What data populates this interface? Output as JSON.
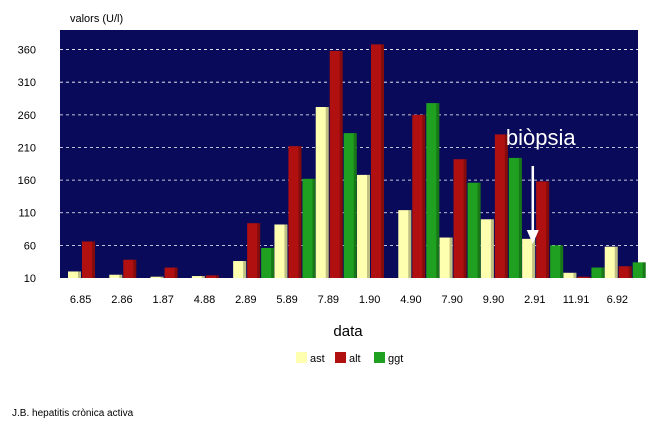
{
  "chart_data": {
    "type": "bar",
    "ylabel": "valors (U/l)",
    "xlabel": "data",
    "categories": [
      "6.85",
      "2.86",
      "1.87",
      "4.88",
      "2.89",
      "5.89",
      "7.89",
      "1.90",
      "4.90",
      "7.90",
      "9.90",
      "2.91",
      "11.91",
      "6.92"
    ],
    "series": [
      {
        "name": "ast",
        "color": "#ffffb0",
        "values": [
          20,
          15,
          12,
          13,
          36,
          92,
          272,
          168,
          114,
          72,
          100,
          70,
          18,
          58
        ]
      },
      {
        "name": "alt",
        "color": "#b01010",
        "values": [
          66,
          38,
          26,
          14,
          94,
          212,
          358,
          368,
          260,
          192,
          230,
          158,
          12,
          28
        ]
      },
      {
        "name": "ggt",
        "color": "#20a020",
        "values": [
          null,
          null,
          null,
          null,
          56,
          162,
          232,
          null,
          278,
          156,
          194,
          60,
          26,
          34
        ]
      }
    ],
    "yticks": [
      10,
      60,
      110,
      160,
      210,
      260,
      310,
      360
    ],
    "ylim": [
      10,
      390
    ],
    "grid": true,
    "legend_position": "bottom",
    "annotation": {
      "text": "biòpsia",
      "category": "2.91"
    },
    "plot_background": "#0a0a5a"
  },
  "footer": "J.B. hepatitis crònica activa"
}
